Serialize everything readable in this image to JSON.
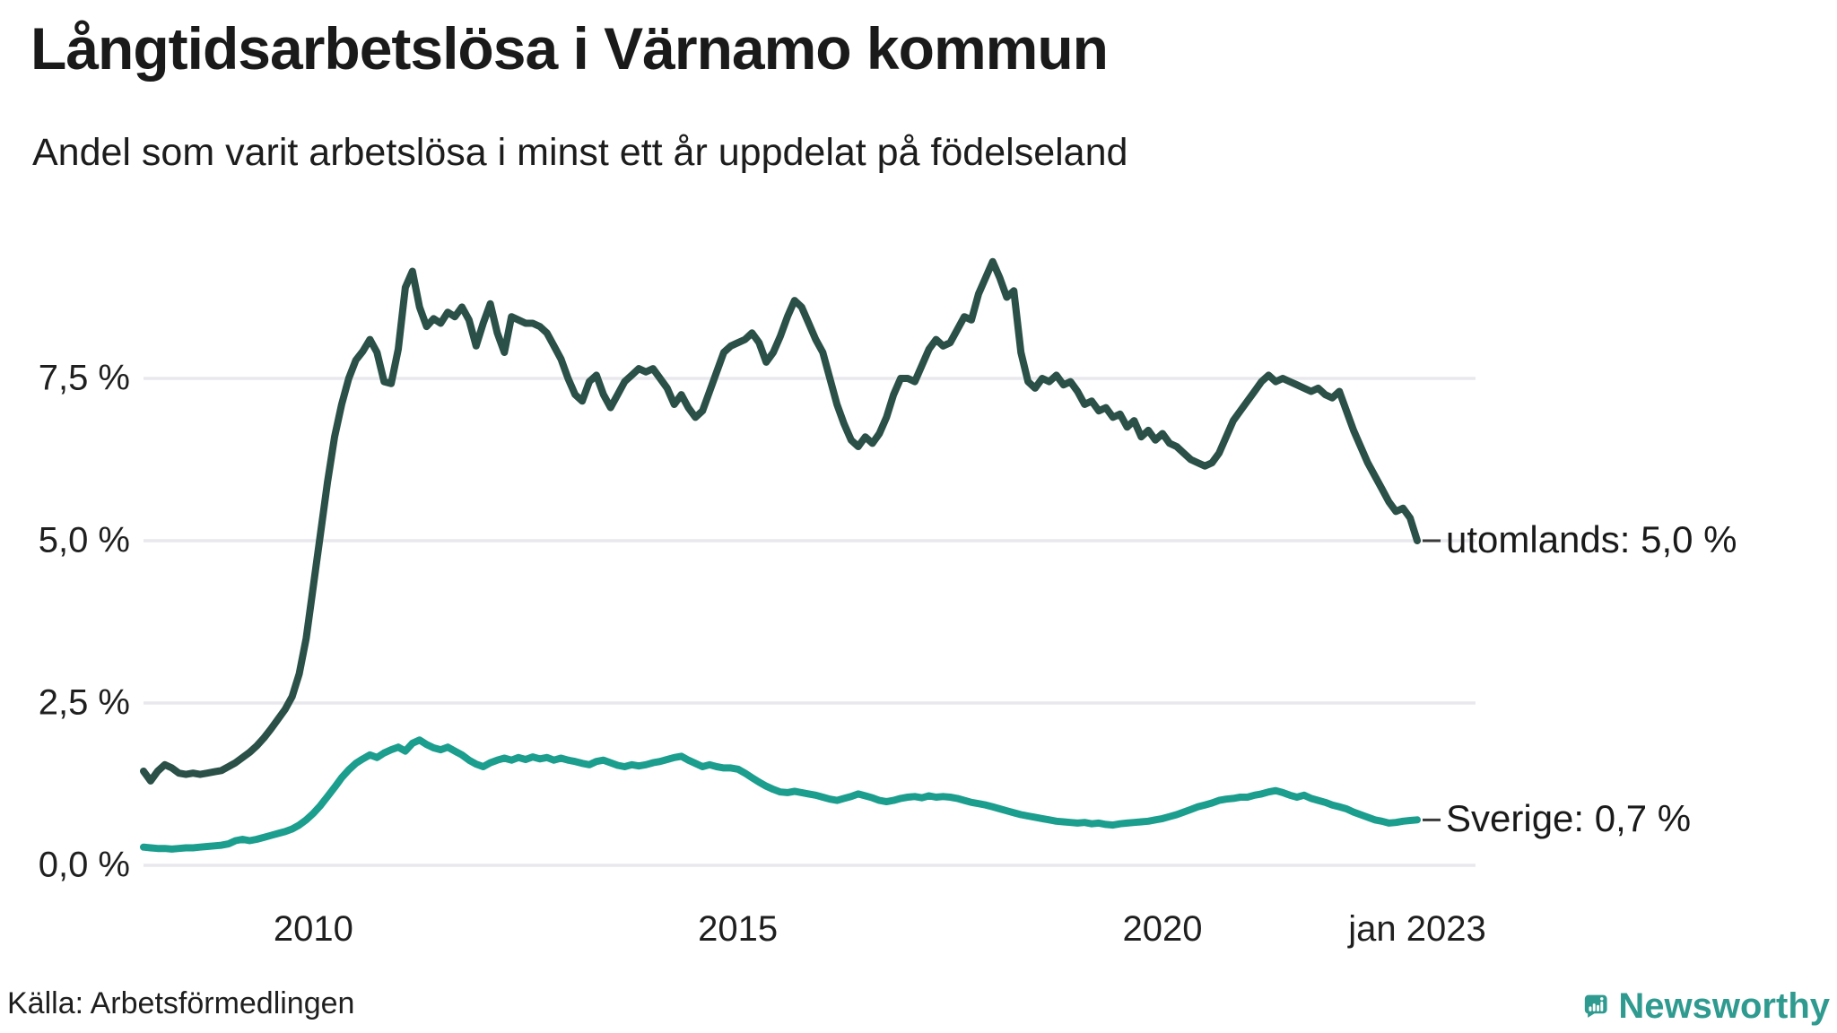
{
  "header": {
    "title": "Långtidsarbetslösa i Värnamo kommun",
    "subtitle": "Andel som varit arbetslösa i minst ett år uppdelat på födelseland"
  },
  "footer": {
    "source": "Källa: Arbetsförmedlingen",
    "logo_text": "Newsworthy"
  },
  "colors": {
    "utomlands_line": "#2a5047",
    "sverige_line": "#1b9e8e",
    "grid": "#e9e9ed",
    "leader_dash": "#3a3a3a",
    "brand_teal": "#2f9a8f",
    "text": "#1a1a1a"
  },
  "chart_data": {
    "type": "line",
    "title": "Långtidsarbetslösa i Värnamo kommun",
    "subtitle": "Andel som varit arbetslösa i minst ett år uppdelat på födelseland",
    "xlabel": "",
    "ylabel": "",
    "grid": "horizontal",
    "legend_position": "right-end-annotations",
    "x_range": [
      2008,
      2023
    ],
    "x_step_months": 1,
    "ylim": [
      0,
      9.6
    ],
    "y_ticks": [
      {
        "value": 0.0,
        "label": "0,0 %"
      },
      {
        "value": 2.5,
        "label": "2,5 %"
      },
      {
        "value": 5.0,
        "label": "5,0 %"
      },
      {
        "value": 7.5,
        "label": "7,5 %"
      }
    ],
    "x_ticks": [
      {
        "year": 2010,
        "label": "2010"
      },
      {
        "year": 2015,
        "label": "2015"
      },
      {
        "year": 2020,
        "label": "2020"
      },
      {
        "year": 2023,
        "label": "jan 2023"
      }
    ],
    "series": [
      {
        "name": "utomlands",
        "label": "utomlands: 5,0 %",
        "last_value": 5.0,
        "color": "#2a5047",
        "values": [
          1.45,
          1.3,
          1.45,
          1.55,
          1.5,
          1.42,
          1.4,
          1.42,
          1.4,
          1.42,
          1.44,
          1.46,
          1.52,
          1.58,
          1.66,
          1.74,
          1.84,
          1.96,
          2.1,
          2.25,
          2.4,
          2.6,
          2.95,
          3.5,
          4.3,
          5.1,
          5.9,
          6.6,
          7.1,
          7.5,
          7.78,
          7.92,
          8.1,
          7.9,
          7.45,
          7.42,
          7.95,
          8.9,
          9.15,
          8.6,
          8.3,
          8.42,
          8.35,
          8.52,
          8.45,
          8.6,
          8.4,
          8.0,
          8.35,
          8.65,
          8.2,
          7.9,
          8.45,
          8.4,
          8.35,
          8.35,
          8.3,
          8.2,
          8.0,
          7.8,
          7.5,
          7.25,
          7.15,
          7.45,
          7.55,
          7.25,
          7.05,
          7.25,
          7.45,
          7.55,
          7.65,
          7.6,
          7.65,
          7.5,
          7.35,
          7.1,
          7.25,
          7.05,
          6.9,
          7.0,
          7.3,
          7.6,
          7.9,
          8.0,
          8.05,
          8.1,
          8.2,
          8.05,
          7.75,
          7.9,
          8.15,
          8.45,
          8.7,
          8.6,
          8.35,
          8.1,
          7.9,
          7.5,
          7.1,
          6.8,
          6.55,
          6.45,
          6.6,
          6.5,
          6.65,
          6.9,
          7.25,
          7.5,
          7.5,
          7.45,
          7.7,
          7.95,
          8.1,
          8.0,
          8.05,
          8.25,
          8.45,
          8.4,
          8.8,
          9.05,
          9.3,
          9.05,
          8.75,
          8.85,
          7.9,
          7.45,
          7.35,
          7.5,
          7.45,
          7.55,
          7.4,
          7.45,
          7.3,
          7.1,
          7.15,
          7.0,
          7.05,
          6.9,
          6.95,
          6.75,
          6.85,
          6.6,
          6.7,
          6.55,
          6.65,
          6.5,
          6.45,
          6.35,
          6.25,
          6.2,
          6.15,
          6.2,
          6.35,
          6.6,
          6.85,
          7.0,
          7.15,
          7.3,
          7.45,
          7.55,
          7.45,
          7.5,
          7.45,
          7.4,
          7.35,
          7.3,
          7.35,
          7.25,
          7.2,
          7.3,
          7.0,
          6.7,
          6.45,
          6.2,
          6.0,
          5.8,
          5.6,
          5.45,
          5.5,
          5.35,
          5.0
        ]
      },
      {
        "name": "Sverige",
        "label": "Sverige: 0,7 %",
        "last_value": 0.7,
        "color": "#1b9e8e",
        "values": [
          0.28,
          0.27,
          0.26,
          0.26,
          0.25,
          0.26,
          0.27,
          0.27,
          0.28,
          0.29,
          0.3,
          0.31,
          0.33,
          0.38,
          0.4,
          0.38,
          0.4,
          0.43,
          0.46,
          0.49,
          0.52,
          0.56,
          0.62,
          0.7,
          0.8,
          0.92,
          1.06,
          1.2,
          1.35,
          1.47,
          1.57,
          1.64,
          1.7,
          1.66,
          1.73,
          1.78,
          1.82,
          1.76,
          1.88,
          1.93,
          1.86,
          1.81,
          1.78,
          1.82,
          1.76,
          1.7,
          1.62,
          1.56,
          1.52,
          1.58,
          1.62,
          1.65,
          1.62,
          1.66,
          1.63,
          1.67,
          1.64,
          1.66,
          1.62,
          1.65,
          1.62,
          1.6,
          1.57,
          1.55,
          1.6,
          1.62,
          1.58,
          1.54,
          1.52,
          1.55,
          1.53,
          1.55,
          1.58,
          1.6,
          1.63,
          1.66,
          1.68,
          1.62,
          1.57,
          1.52,
          1.55,
          1.52,
          1.5,
          1.5,
          1.48,
          1.42,
          1.35,
          1.28,
          1.22,
          1.17,
          1.13,
          1.12,
          1.14,
          1.12,
          1.1,
          1.08,
          1.05,
          1.02,
          1.0,
          1.03,
          1.06,
          1.1,
          1.07,
          1.04,
          1.0,
          0.98,
          1.0,
          1.03,
          1.05,
          1.06,
          1.04,
          1.07,
          1.05,
          1.06,
          1.05,
          1.03,
          1.0,
          0.97,
          0.95,
          0.93,
          0.9,
          0.87,
          0.84,
          0.81,
          0.78,
          0.76,
          0.74,
          0.72,
          0.7,
          0.68,
          0.67,
          0.66,
          0.65,
          0.66,
          0.64,
          0.65,
          0.63,
          0.62,
          0.64,
          0.65,
          0.66,
          0.67,
          0.68,
          0.7,
          0.72,
          0.75,
          0.78,
          0.82,
          0.86,
          0.9,
          0.93,
          0.96,
          1.0,
          1.02,
          1.03,
          1.05,
          1.05,
          1.08,
          1.1,
          1.13,
          1.15,
          1.12,
          1.08,
          1.05,
          1.08,
          1.03,
          1.0,
          0.97,
          0.93,
          0.9,
          0.87,
          0.82,
          0.78,
          0.74,
          0.7,
          0.68,
          0.65,
          0.66,
          0.68,
          0.69,
          0.7
        ]
      }
    ]
  }
}
